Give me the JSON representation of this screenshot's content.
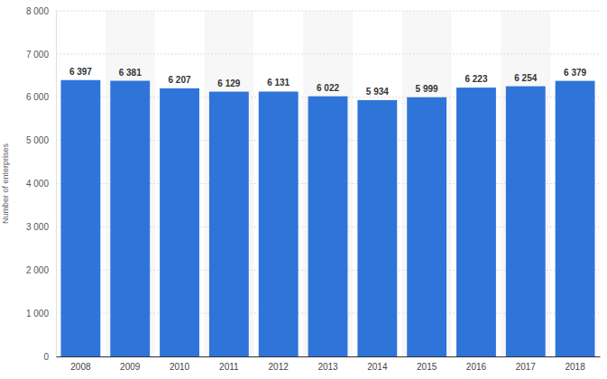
{
  "chart_data": {
    "type": "bar",
    "y_label": "Number of enterprises",
    "categories": [
      "2008",
      "2009",
      "2010",
      "2011",
      "2012",
      "2013",
      "2014",
      "2015",
      "2016",
      "2017",
      "2018"
    ],
    "values": [
      6397,
      6381,
      6207,
      6129,
      6131,
      6022,
      5934,
      5999,
      6223,
      6254,
      6379
    ],
    "value_labels": [
      "6 397",
      "6 381",
      "6 207",
      "6 129",
      "6 131",
      "6 022",
      "5 934",
      "5 999",
      "6 223",
      "6 254",
      "6 379"
    ],
    "color": "#2f74d9",
    "ylim": [
      0,
      8000
    ],
    "yticks": [
      0,
      {
        "value": 1000,
        "label": "1 000"
      },
      {
        "value": 2000,
        "label": "2 000"
      },
      {
        "value": 3000,
        "label": "3 000"
      },
      {
        "value": 4000,
        "label": "4 000"
      },
      {
        "value": 5000,
        "label": "5 000"
      },
      {
        "value": 6000,
        "label": "6 000"
      },
      {
        "value": 7000,
        "label": "7 000"
      },
      {
        "value": 8000,
        "label": "8 000"
      }
    ],
    "grid": true,
    "data_labels": true
  }
}
